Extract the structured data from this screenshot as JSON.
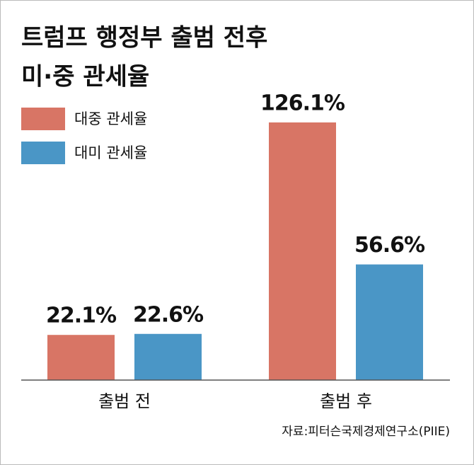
{
  "chart_data": {
    "type": "bar",
    "title": [
      "트럼프 행정부 출범 전후",
      "미·중 관세율"
    ],
    "categories": [
      "출범 전",
      "출범 후"
    ],
    "series": [
      {
        "name": "대중 관세율",
        "color": "#d87565",
        "values": [
          22.1,
          126.1
        ],
        "value_labels": [
          "22.1%",
          "126.1%"
        ]
      },
      {
        "name": "대미 관세율",
        "color": "#4a96c6",
        "values": [
          22.6,
          56.6
        ],
        "value_labels": [
          "22.6%",
          "56.6%"
        ]
      }
    ],
    "source": "자료:피터슨국제경제연구소(PIIE)"
  }
}
